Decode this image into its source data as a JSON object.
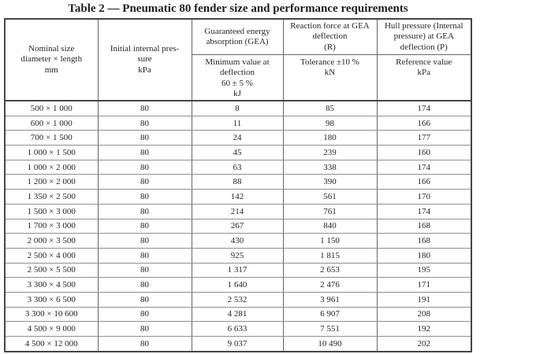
{
  "title": "Table 2 — Pneumatic 80 fender size and performance requirements",
  "table": {
    "columns": [
      {
        "header": "Nominal size\ndiameter × length\nmm"
      },
      {
        "header": "Initial internal pres-\nsure\nkPa"
      },
      {
        "group": "Guaranteed energy\nabsorption (GEA)",
        "sub": "Minimum value at\ndeflection\n60 ± 5 %\nkJ"
      },
      {
        "group": "Reaction force at GEA\ndeflection\n(R)",
        "sub": "Tolerance ±10 %\nkN"
      },
      {
        "group": "Hull pressure (Internal\npressure) at GEA\ndeflection (P)",
        "sub": "Reference value\nkPa"
      }
    ],
    "rows": [
      [
        "500 × 1 000",
        "80",
        "8",
        "85",
        "174"
      ],
      [
        "600 × 1 000",
        "80",
        "11",
        "98",
        "166"
      ],
      [
        "700 × 1 500",
        "80",
        "24",
        "180",
        "177"
      ],
      [
        "1 000 × 1 500",
        "80",
        "45",
        "239",
        "160"
      ],
      [
        "1 000 × 2 000",
        "80",
        "63",
        "338",
        "174"
      ],
      [
        "1 200 × 2 000",
        "80",
        "88",
        "390",
        "166"
      ],
      [
        "1 350 × 2 500",
        "80",
        "142",
        "561",
        "170"
      ],
      [
        "1 500 × 3 000",
        "80",
        "214",
        "761",
        "174"
      ],
      [
        "1 700 × 3 000",
        "80",
        "267",
        "840",
        "168"
      ],
      [
        "2 000 × 3 500",
        "80",
        "430",
        "1 150",
        "168"
      ],
      [
        "2 500 × 4 000",
        "80",
        "925",
        "1 815",
        "180"
      ],
      [
        "2 500 × 5 500",
        "80",
        "1 317",
        "2 653",
        "195"
      ],
      [
        "3 300 × 4 500",
        "80",
        "1 640",
        "2 476",
        "171"
      ],
      [
        "3 300 × 6 500",
        "80",
        "2 532",
        "3 961",
        "191"
      ],
      [
        "3 300 × 10 600",
        "80",
        "4 281",
        "6 907",
        "208"
      ],
      [
        "4 500 × 9 000",
        "80",
        "6 633",
        "7 551",
        "192"
      ],
      [
        "4 500 × 12 000",
        "80",
        "9 037",
        "10 490",
        "202"
      ]
    ]
  },
  "colors": {
    "background": "#ffffff",
    "text": "#262626",
    "border_outer": "#454545",
    "border_vertical": "#666666",
    "border_horizontal": "#8f8f8f"
  }
}
